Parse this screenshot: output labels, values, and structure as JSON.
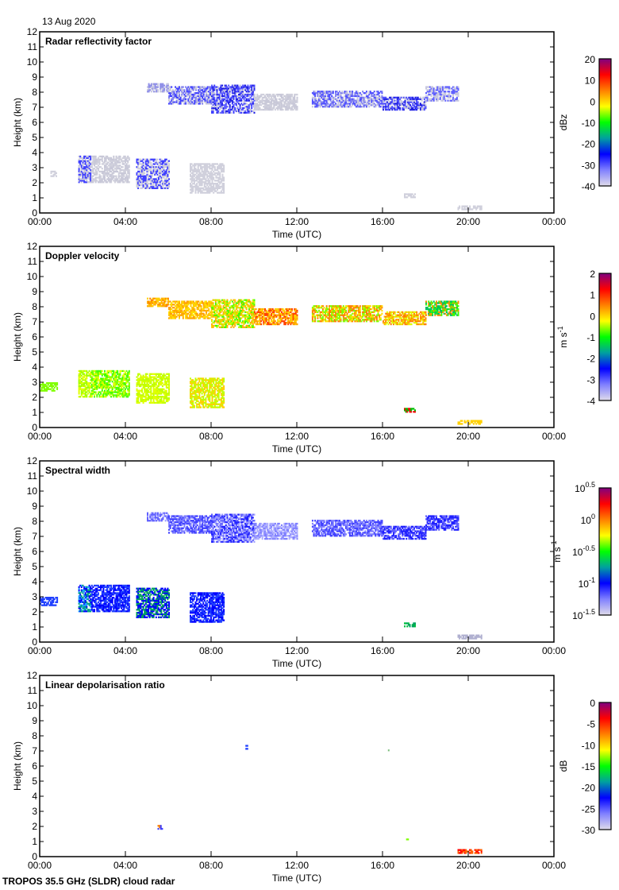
{
  "date_label": "13 Aug 2020",
  "footer": "TROPOS 35.5 GHz (SLDR) cloud radar",
  "chart_data": [
    {
      "type": "heatmap",
      "title": "Radar reflectivity factor",
      "xlabel": "Time (UTC)",
      "ylabel": "Height (km)",
      "xlim": [
        0,
        24
      ],
      "ylim": [
        0,
        12
      ],
      "xticks": [
        "00:00",
        "04:00",
        "08:00",
        "12:00",
        "16:00",
        "20:00",
        "00:00"
      ],
      "yticks": [
        "0",
        "1",
        "2",
        "3",
        "4",
        "5",
        "6",
        "7",
        "8",
        "9",
        "10",
        "11",
        "12"
      ],
      "colorbar": {
        "label": "dBz",
        "range": [
          -40,
          20
        ],
        "ticks": [
          "20",
          "10",
          "0",
          "-10",
          "-20",
          "-30",
          "-40"
        ],
        "colors": [
          "#e0dcea",
          "#8080ff",
          "#0000ff",
          "#00a0a0",
          "#00ff00",
          "#ffff00",
          "#ff8000",
          "#ff0000",
          "#800080"
        ]
      },
      "patches": [
        {
          "t": [
            5.0,
            6.0
          ],
          "h": [
            8.0,
            8.5
          ],
          "c": [
            "#c8c8e0",
            "#9090e8"
          ]
        },
        {
          "t": [
            6.0,
            8.0
          ],
          "h": [
            7.2,
            8.3
          ],
          "c": [
            "#c8c8dc",
            "#8080f0",
            "#4040ff"
          ]
        },
        {
          "t": [
            8.0,
            10.0
          ],
          "h": [
            6.6,
            8.4
          ],
          "c": [
            "#4040ff",
            "#2020e0",
            "#c8c8dc",
            "#6060ff"
          ]
        },
        {
          "t": [
            10.0,
            12.0
          ],
          "h": [
            6.8,
            7.8
          ],
          "c": [
            "#d0d0dc",
            "#c8c8d8"
          ]
        },
        {
          "t": [
            12.7,
            16.0
          ],
          "h": [
            7.0,
            8.0
          ],
          "c": [
            "#8080f0",
            "#c8c8e0",
            "#5050ff"
          ]
        },
        {
          "t": [
            16.0,
            18.0
          ],
          "h": [
            6.8,
            7.6
          ],
          "c": [
            "#2020e0",
            "#5050ff",
            "#c8c8e0"
          ]
        },
        {
          "t": [
            18.0,
            19.5
          ],
          "h": [
            7.4,
            8.3
          ],
          "c": [
            "#6060ff",
            "#c8c8e0"
          ]
        },
        {
          "t": [
            0.5,
            0.8
          ],
          "h": [
            2.4,
            2.8
          ],
          "c": [
            "#d0d0dc"
          ]
        },
        {
          "t": [
            1.8,
            2.4
          ],
          "h": [
            2.0,
            3.8
          ],
          "c": [
            "#4040ff",
            "#c8c8dc"
          ]
        },
        {
          "t": [
            2.4,
            4.2
          ],
          "h": [
            2.0,
            3.8
          ],
          "c": [
            "#d0d0dc",
            "#c8c8d8"
          ]
        },
        {
          "t": [
            4.5,
            6.0
          ],
          "h": [
            1.6,
            3.6
          ],
          "c": [
            "#d0d0dc",
            "#4040ff"
          ]
        },
        {
          "t": [
            7.0,
            8.6
          ],
          "h": [
            1.3,
            3.3
          ],
          "c": [
            "#d0d0dc"
          ]
        },
        {
          "t": [
            17.0,
            17.5
          ],
          "h": [
            1.0,
            1.3
          ],
          "c": [
            "#d0d0dc"
          ]
        },
        {
          "t": [
            19.5,
            20.6
          ],
          "h": [
            0.2,
            0.5
          ],
          "c": [
            "#d0d0dc"
          ]
        }
      ]
    },
    {
      "type": "heatmap",
      "title": "Doppler velocity",
      "xlabel": "Time (UTC)",
      "ylabel": "Height (km)",
      "xlim": [
        0,
        24
      ],
      "ylim": [
        0,
        12
      ],
      "xticks": [
        "00:00",
        "04:00",
        "08:00",
        "12:00",
        "16:00",
        "20:00",
        "00:00"
      ],
      "yticks": [
        "0",
        "1",
        "2",
        "3",
        "4",
        "5",
        "6",
        "7",
        "8",
        "9",
        "10",
        "11",
        "12"
      ],
      "colorbar": {
        "label": "m s-1",
        "label_main": "m s",
        "label_sup": "-1",
        "range": [
          -4,
          2
        ],
        "ticks": [
          "2",
          "1",
          "0",
          "-1",
          "-2",
          "-3",
          "-4"
        ],
        "colors": [
          "#e0dcea",
          "#8080ff",
          "#0000ff",
          "#00a0a0",
          "#00ff00",
          "#ffff00",
          "#ff8000",
          "#ff0000",
          "#800080"
        ]
      },
      "patches": [
        {
          "t": [
            5.0,
            6.0
          ],
          "h": [
            8.0,
            8.5
          ],
          "c": [
            "#ffb000",
            "#ff8000",
            "#ffd000"
          ]
        },
        {
          "t": [
            6.0,
            8.0
          ],
          "h": [
            7.2,
            8.3
          ],
          "c": [
            "#ffa000",
            "#ffc000",
            "#ffe000"
          ]
        },
        {
          "t": [
            8.0,
            10.0
          ],
          "h": [
            6.6,
            8.4
          ],
          "c": [
            "#ffd000",
            "#c0ff00",
            "#40ff00",
            "#ffb000"
          ]
        },
        {
          "t": [
            10.0,
            12.0
          ],
          "h": [
            6.8,
            7.8
          ],
          "c": [
            "#ff4000",
            "#ffa000",
            "#ffd000"
          ]
        },
        {
          "t": [
            12.7,
            16.0
          ],
          "h": [
            7.0,
            8.0
          ],
          "c": [
            "#ff8000",
            "#80ff00",
            "#ffe000"
          ]
        },
        {
          "t": [
            16.0,
            18.0
          ],
          "h": [
            6.8,
            7.6
          ],
          "c": [
            "#ffb000",
            "#ff8000",
            "#e0ff00"
          ]
        },
        {
          "t": [
            18.0,
            19.5
          ],
          "h": [
            7.4,
            8.3
          ],
          "c": [
            "#00c060",
            "#40ff00",
            "#ff9000"
          ]
        },
        {
          "t": [
            0.0,
            0.8
          ],
          "h": [
            2.4,
            3.0
          ],
          "c": [
            "#80ff00"
          ]
        },
        {
          "t": [
            1.8,
            2.4
          ],
          "h": [
            2.0,
            3.8
          ],
          "c": [
            "#a0ff00",
            "#e0ff00"
          ]
        },
        {
          "t": [
            2.4,
            4.2
          ],
          "h": [
            2.0,
            3.8
          ],
          "c": [
            "#80ff00",
            "#e0ff00",
            "#40ff00"
          ]
        },
        {
          "t": [
            4.5,
            6.0
          ],
          "h": [
            1.6,
            3.6
          ],
          "c": [
            "#e0ff00",
            "#c0ff00"
          ]
        },
        {
          "t": [
            7.0,
            8.6
          ],
          "h": [
            1.3,
            3.3
          ],
          "c": [
            "#ffd000",
            "#c0ff00"
          ]
        },
        {
          "t": [
            17.0,
            17.5
          ],
          "h": [
            1.0,
            1.3
          ],
          "c": [
            "#ff0000",
            "#00c000"
          ]
        },
        {
          "t": [
            19.5,
            20.6
          ],
          "h": [
            0.2,
            0.5
          ],
          "c": [
            "#ffd000"
          ]
        }
      ]
    },
    {
      "type": "heatmap",
      "title": "Spectral width",
      "xlabel": "Time (UTC)",
      "ylabel": "Height (km)",
      "xlim": [
        0,
        24
      ],
      "ylim": [
        0,
        12
      ],
      "xticks": [
        "00:00",
        "04:00",
        "08:00",
        "12:00",
        "16:00",
        "20:00",
        "00:00"
      ],
      "yticks": [
        "0",
        "1",
        "2",
        "3",
        "4",
        "5",
        "6",
        "7",
        "8",
        "9",
        "10",
        "11",
        "12"
      ],
      "colorbar": {
        "label": "m s-1",
        "label_main": "m s",
        "label_sup": "-1",
        "range": [
          -1.5,
          0.5
        ],
        "scale": "log10",
        "ticks": [
          {
            "base": "10",
            "exp": "0.5"
          },
          {
            "base": "10",
            "exp": "0"
          },
          {
            "base": "10",
            "exp": "-0.5"
          },
          {
            "base": "10",
            "exp": "-1"
          },
          {
            "base": "10",
            "exp": "-1.5"
          }
        ],
        "colors": [
          "#e0dcea",
          "#8080ff",
          "#0000ff",
          "#00a0a0",
          "#00ff00",
          "#ffff00",
          "#ff8000",
          "#ff0000",
          "#800080"
        ]
      },
      "patches": [
        {
          "t": [
            5.0,
            6.0
          ],
          "h": [
            8.0,
            8.5
          ],
          "c": [
            "#6060ff",
            "#a0a0ff"
          ]
        },
        {
          "t": [
            6.0,
            8.0
          ],
          "h": [
            7.2,
            8.3
          ],
          "c": [
            "#4040ff",
            "#8080ff"
          ]
        },
        {
          "t": [
            8.0,
            10.0
          ],
          "h": [
            6.6,
            8.4
          ],
          "c": [
            "#2020ff",
            "#6060ff",
            "#a0a0ff"
          ]
        },
        {
          "t": [
            10.0,
            12.0
          ],
          "h": [
            6.8,
            7.8
          ],
          "c": [
            "#8080ff",
            "#b0b0ff"
          ]
        },
        {
          "t": [
            12.7,
            16.0
          ],
          "h": [
            7.0,
            8.0
          ],
          "c": [
            "#4040ff",
            "#8080ff"
          ]
        },
        {
          "t": [
            16.0,
            18.0
          ],
          "h": [
            6.8,
            7.6
          ],
          "c": [
            "#2020ff",
            "#6060ff"
          ]
        },
        {
          "t": [
            18.0,
            19.5
          ],
          "h": [
            7.4,
            8.3
          ],
          "c": [
            "#2020ff",
            "#6060ff"
          ]
        },
        {
          "t": [
            0.0,
            0.8
          ],
          "h": [
            2.4,
            3.0
          ],
          "c": [
            "#2040ff"
          ]
        },
        {
          "t": [
            1.8,
            2.4
          ],
          "h": [
            2.0,
            3.8
          ],
          "c": [
            "#0000ff",
            "#00a080",
            "#20a0ff"
          ]
        },
        {
          "t": [
            2.4,
            4.2
          ],
          "h": [
            2.0,
            3.8
          ],
          "c": [
            "#0000ff",
            "#2040ff"
          ]
        },
        {
          "t": [
            4.5,
            6.0
          ],
          "h": [
            1.6,
            3.6
          ],
          "c": [
            "#0000ff",
            "#00a060"
          ]
        },
        {
          "t": [
            7.0,
            8.6
          ],
          "h": [
            1.3,
            3.3
          ],
          "c": [
            "#0000ff",
            "#2040ff"
          ]
        },
        {
          "t": [
            17.0,
            17.5
          ],
          "h": [
            1.0,
            1.3
          ],
          "c": [
            "#00c040",
            "#00a060"
          ]
        },
        {
          "t": [
            19.5,
            20.6
          ],
          "h": [
            0.2,
            0.5
          ],
          "c": [
            "#b0b0d0"
          ]
        }
      ]
    },
    {
      "type": "heatmap",
      "title": "Linear depolarisation ratio",
      "xlabel": "Time (UTC)",
      "ylabel": "Height (km)",
      "xlim": [
        0,
        24
      ],
      "ylim": [
        0,
        12
      ],
      "xticks": [
        "00:00",
        "04:00",
        "08:00",
        "12:00",
        "16:00",
        "20:00",
        "00:00"
      ],
      "yticks": [
        "0",
        "1",
        "2",
        "3",
        "4",
        "5",
        "6",
        "7",
        "8",
        "9",
        "10",
        "11",
        "12"
      ],
      "colorbar": {
        "label": "dB",
        "range": [
          -30,
          0
        ],
        "ticks": [
          "0",
          "-5",
          "-10",
          "-15",
          "-20",
          "-25",
          "-30"
        ],
        "colors": [
          "#e0dcea",
          "#8080ff",
          "#0000ff",
          "#00a0a0",
          "#00ff00",
          "#ffff00",
          "#ff8000",
          "#ff0000",
          "#800080"
        ]
      },
      "patches": [
        {
          "t": [
            9.6,
            9.7
          ],
          "h": [
            7.1,
            7.3
          ],
          "c": [
            "#2040ff"
          ]
        },
        {
          "t": [
            16.25,
            16.3
          ],
          "h": [
            7.0,
            7.1
          ],
          "c": [
            "#80c080"
          ]
        },
        {
          "t": [
            5.5,
            5.7
          ],
          "h": [
            1.8,
            2.1
          ],
          "c": [
            "#4040ff",
            "#ff8000"
          ]
        },
        {
          "t": [
            17.1,
            17.2
          ],
          "h": [
            1.1,
            1.2
          ],
          "c": [
            "#80ff00"
          ]
        },
        {
          "t": [
            19.5,
            20.6
          ],
          "h": [
            0.2,
            0.5
          ],
          "c": [
            "#ff6000",
            "#ff0000"
          ]
        }
      ]
    }
  ]
}
